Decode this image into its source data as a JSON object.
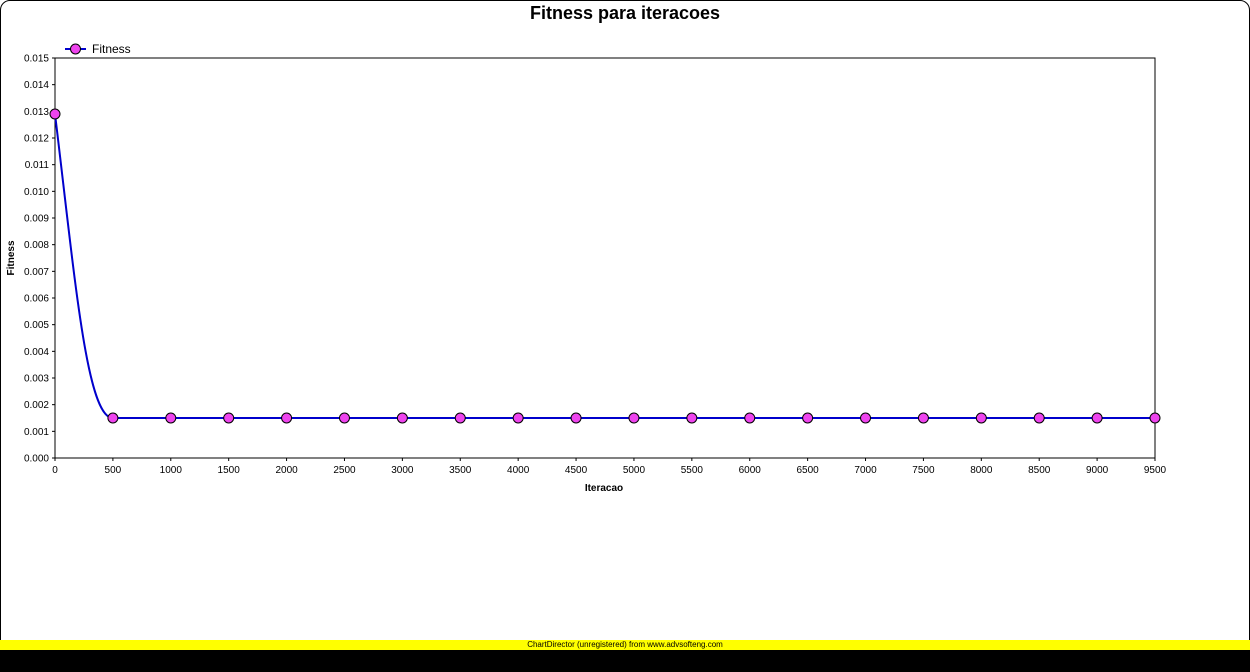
{
  "chart_data": {
    "type": "line",
    "title": "Fitness para iteracoes",
    "xlabel": "Iteracao",
    "ylabel": "Fitness",
    "x": [
      0,
      500,
      1000,
      1500,
      2000,
      2500,
      3000,
      3500,
      4000,
      4500,
      5000,
      5500,
      6000,
      6500,
      7000,
      7500,
      8000,
      8500,
      9000,
      9500
    ],
    "xticks": [
      "0",
      "500",
      "1000",
      "1500",
      "2000",
      "2500",
      "3000",
      "3500",
      "4000",
      "4500",
      "5000",
      "5500",
      "6000",
      "6500",
      "7000",
      "7500",
      "8000",
      "8500",
      "9000",
      "9500"
    ],
    "xlim": [
      0,
      9500
    ],
    "ylim": [
      0,
      0.015
    ],
    "yticks": [
      "0.000",
      "0.001",
      "0.002",
      "0.003",
      "0.004",
      "0.005",
      "0.006",
      "0.007",
      "0.008",
      "0.009",
      "0.010",
      "0.011",
      "0.012",
      "0.013",
      "0.014",
      "0.015"
    ],
    "series": [
      {
        "name": "Fitness",
        "values": [
          0.0129,
          0.0015,
          0.0015,
          0.0015,
          0.0015,
          0.0015,
          0.0015,
          0.0015,
          0.0015,
          0.0015,
          0.0015,
          0.0015,
          0.0015,
          0.0015,
          0.0015,
          0.0015,
          0.0015,
          0.0015,
          0.0015,
          0.0015
        ],
        "line_color": "#0000cc",
        "marker_color": "#ee44ee"
      }
    ],
    "grid": false,
    "legend": "top-left"
  },
  "footer": {
    "watermark": "ChartDirector (unregistered) from www.advsofteng.com"
  }
}
